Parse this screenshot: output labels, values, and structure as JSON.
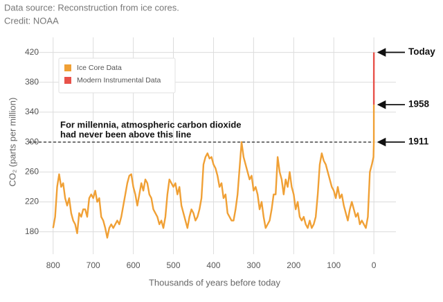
{
  "header": {
    "lines": [
      "Data source: Reconstruction from ice cores.",
      "Credit: NOAA"
    ]
  },
  "chart_data": {
    "type": "line",
    "x_label": "Thousands of years before today",
    "y_label": "CO₂ (parts per million)",
    "xlim": [
      860,
      -55
    ],
    "ylim": [
      150,
      440
    ],
    "xticks": [
      800,
      700,
      600,
      500,
      400,
      300,
      200,
      100,
      0
    ],
    "yticks": [
      180,
      220,
      260,
      300,
      340,
      380,
      420
    ],
    "grid": true,
    "legend": "upper left",
    "reference_line": {
      "y": 300,
      "label_lines": [
        "For millennia, atmospheric carbon dioxide",
        "had never been above this line"
      ]
    },
    "annotations": [
      {
        "text": "Today",
        "y": 420
      },
      {
        "text": "1958",
        "y": 350
      },
      {
        "text": "1911",
        "y": 300
      }
    ],
    "series": [
      {
        "name": "Ice Core Data",
        "color": "#f0a035",
        "x": [
          800,
          795,
          790,
          785,
          780,
          775,
          770,
          765,
          760,
          755,
          750,
          745,
          740,
          735,
          730,
          725,
          720,
          715,
          710,
          705,
          700,
          695,
          690,
          685,
          680,
          675,
          670,
          665,
          660,
          655,
          650,
          645,
          640,
          635,
          630,
          625,
          620,
          615,
          610,
          605,
          600,
          595,
          590,
          585,
          580,
          575,
          570,
          565,
          560,
          555,
          550,
          545,
          540,
          535,
          530,
          525,
          520,
          515,
          510,
          505,
          500,
          495,
          490,
          485,
          480,
          475,
          470,
          465,
          460,
          455,
          450,
          445,
          440,
          435,
          430,
          425,
          420,
          415,
          410,
          405,
          400,
          395,
          390,
          385,
          380,
          375,
          370,
          365,
          360,
          355,
          350,
          345,
          340,
          335,
          330,
          325,
          320,
          315,
          310,
          305,
          300,
          295,
          290,
          285,
          280,
          275,
          270,
          265,
          260,
          255,
          250,
          245,
          240,
          235,
          230,
          225,
          220,
          215,
          210,
          205,
          200,
          195,
          190,
          185,
          180,
          175,
          170,
          165,
          160,
          155,
          150,
          145,
          140,
          135,
          130,
          125,
          120,
          115,
          110,
          105,
          100,
          95,
          90,
          85,
          80,
          75,
          70,
          65,
          60,
          55,
          50,
          45,
          40,
          35,
          30,
          25,
          20,
          15,
          10,
          5,
          1,
          0.113,
          0.066
        ],
        "values": [
          185,
          200,
          240,
          257,
          240,
          245,
          225,
          215,
          225,
          205,
          195,
          190,
          178,
          205,
          200,
          210,
          210,
          200,
          225,
          230,
          225,
          235,
          220,
          225,
          200,
          195,
          185,
          172,
          185,
          190,
          185,
          190,
          195,
          190,
          200,
          215,
          230,
          245,
          255,
          257,
          240,
          230,
          215,
          230,
          245,
          235,
          250,
          245,
          230,
          225,
          210,
          205,
          200,
          190,
          195,
          185,
          200,
          230,
          250,
          245,
          240,
          245,
          230,
          240,
          215,
          205,
          195,
          185,
          200,
          210,
          205,
          195,
          200,
          210,
          225,
          270,
          280,
          285,
          278,
          280,
          270,
          265,
          255,
          240,
          245,
          225,
          230,
          205,
          200,
          195,
          195,
          210,
          230,
          265,
          300,
          280,
          270,
          260,
          250,
          255,
          235,
          240,
          230,
          210,
          220,
          200,
          185,
          190,
          195,
          210,
          230,
          230,
          280,
          260,
          250,
          230,
          250,
          240,
          260,
          240,
          230,
          210,
          220,
          200,
          195,
          200,
          190,
          185,
          195,
          185,
          190,
          200,
          230,
          270,
          285,
          275,
          270,
          260,
          250,
          240,
          235,
          225,
          240,
          225,
          230,
          215,
          205,
          195,
          210,
          220,
          210,
          200,
          205,
          190,
          195,
          190,
          185,
          200,
          260,
          270,
          280,
          300,
          350
        ]
      },
      {
        "name": "Modern Instrumental Data",
        "color": "#e8524a",
        "x": [
          0.066,
          0
        ],
        "values": [
          350,
          420
        ]
      }
    ]
  }
}
